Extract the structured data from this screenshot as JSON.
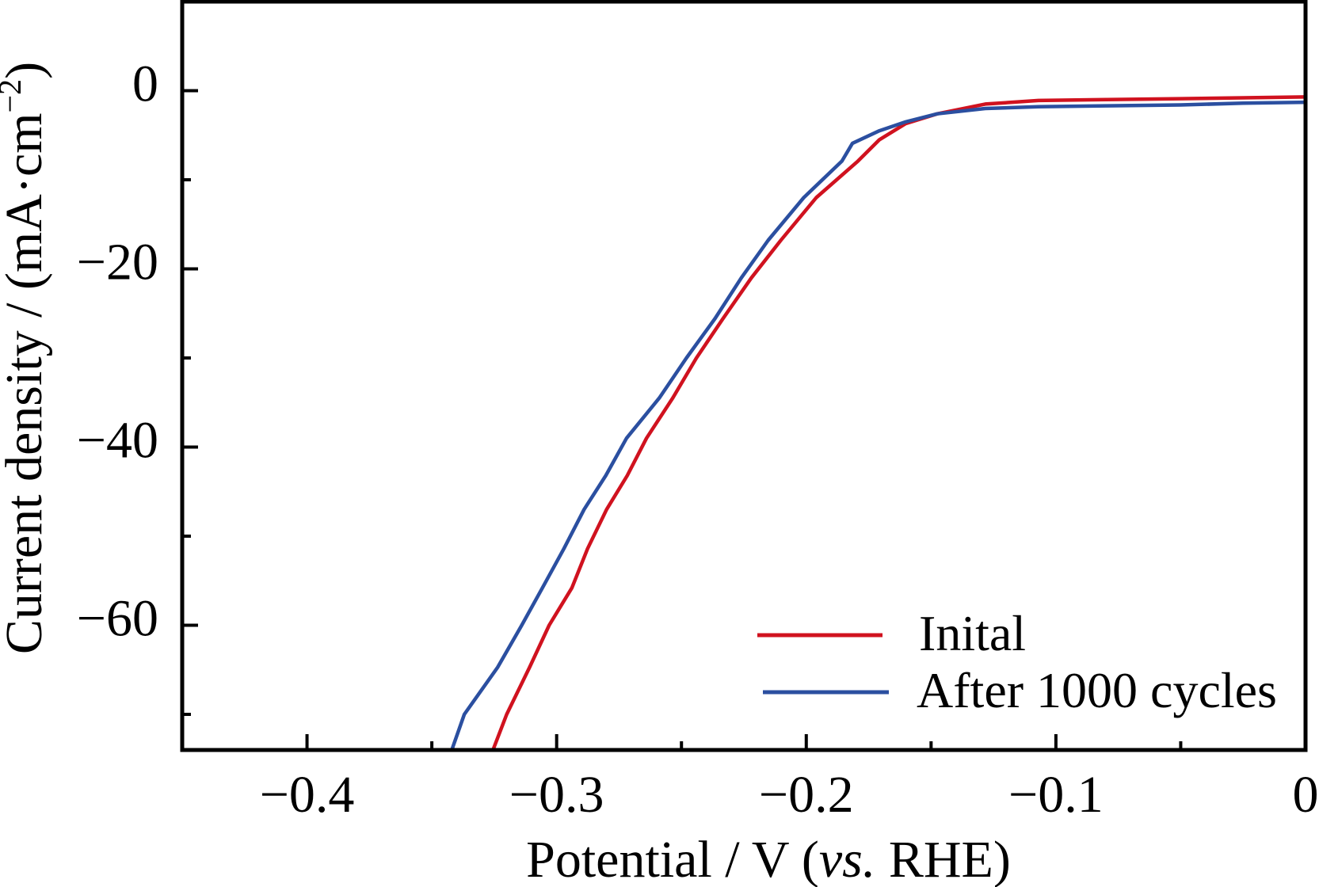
{
  "chart_data": {
    "type": "line",
    "title": "",
    "xlabel": "Potential / V (vs. RHE)",
    "xlabel_parts": {
      "pre": "Potential / V (",
      "italic": "vs.",
      "post": " RHE)"
    },
    "ylabel": "Current density / (mA·cm⁻²)",
    "ylabel_parts": {
      "main": "Current density / (mA·cm",
      "sup": "−2",
      "close": ")"
    },
    "xlim": [
      -0.45,
      0
    ],
    "ylim": [
      -74,
      10
    ],
    "x_major_ticks": [
      -0.4,
      -0.3,
      -0.2,
      -0.1,
      0
    ],
    "x_tick_labels": [
      "−0.4",
      "−0.3",
      "−0.2",
      "−0.1",
      "0"
    ],
    "x_minor_ticks": [
      -0.35,
      -0.25,
      -0.15,
      -0.05
    ],
    "y_major_ticks": [
      0,
      -20,
      -40,
      -60
    ],
    "y_tick_labels": [
      "0",
      "−20",
      "−40",
      "−60"
    ],
    "y_minor_ticks": [
      -10,
      -30,
      -50,
      -70
    ],
    "grid": false,
    "legend_position": "bottom-right",
    "series": [
      {
        "name": "Inital",
        "color": "#d0121f",
        "points": [
          [
            -0.3255,
            -74
          ],
          [
            -0.32,
            -70
          ],
          [
            -0.3108,
            -64.7
          ],
          [
            -0.303,
            -60
          ],
          [
            -0.2939,
            -55.8
          ],
          [
            -0.2876,
            -51.4
          ],
          [
            -0.28,
            -47
          ],
          [
            -0.2717,
            -43.2
          ],
          [
            -0.264,
            -39
          ],
          [
            -0.2535,
            -34.5
          ],
          [
            -0.244,
            -30
          ],
          [
            -0.2334,
            -25.6
          ],
          [
            -0.222,
            -21
          ],
          [
            -0.2102,
            -16.8
          ],
          [
            -0.196,
            -12
          ],
          [
            -0.1793,
            -7.9
          ],
          [
            -0.1707,
            -5.5
          ],
          [
            -0.1602,
            -3.7
          ],
          [
            -0.1475,
            -2.6
          ],
          [
            -0.1283,
            -1.5
          ],
          [
            -0.107,
            -1.1
          ],
          [
            -0.08,
            -1.0
          ],
          [
            -0.05,
            -0.9
          ],
          [
            -0.025,
            -0.8
          ],
          [
            0,
            -0.7
          ]
        ]
      },
      {
        "name": "After 1000 cycles",
        "color": "#2b4fa0",
        "points": [
          [
            -0.342,
            -74
          ],
          [
            -0.337,
            -70
          ],
          [
            -0.3236,
            -64.7
          ],
          [
            -0.314,
            -60
          ],
          [
            -0.3057,
            -55.8
          ],
          [
            -0.2971,
            -51.4
          ],
          [
            -0.289,
            -47
          ],
          [
            -0.2803,
            -43.2
          ],
          [
            -0.272,
            -39
          ],
          [
            -0.2589,
            -34.5
          ],
          [
            -0.248,
            -30
          ],
          [
            -0.2366,
            -25.6
          ],
          [
            -0.226,
            -21
          ],
          [
            -0.2153,
            -16.8
          ],
          [
            -0.201,
            -12
          ],
          [
            -0.1857,
            -7.9
          ],
          [
            -0.1815,
            -5.9
          ],
          [
            -0.1707,
            -4.5
          ],
          [
            -0.1602,
            -3.5
          ],
          [
            -0.1475,
            -2.6
          ],
          [
            -0.1283,
            -2.0
          ],
          [
            -0.107,
            -1.8
          ],
          [
            -0.08,
            -1.7
          ],
          [
            -0.05,
            -1.6
          ],
          [
            -0.025,
            -1.4
          ],
          [
            0,
            -1.3
          ]
        ]
      }
    ]
  }
}
